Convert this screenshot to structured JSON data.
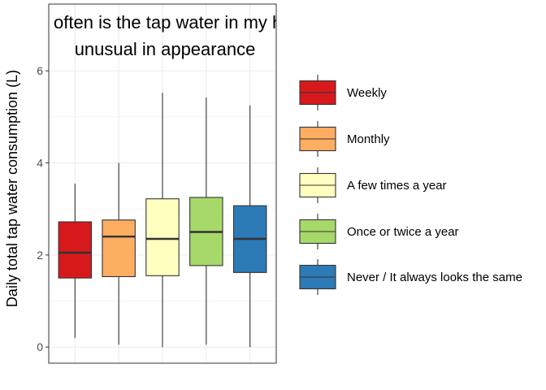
{
  "chart_data": {
    "type": "boxplot",
    "title_lines": [
      "How often is the tap water in my home",
      "unusual in appearance"
    ],
    "ylabel": "Daily total tap water consumption (L)",
    "xlabel": "",
    "ylim": [
      -0.35,
      7.45
    ],
    "yticks": [
      0,
      2,
      4,
      6
    ],
    "grid": true,
    "legend_position": "right",
    "series": [
      {
        "name": "Weekly",
        "color": "#d7191c",
        "whisker_low": 0.2,
        "q1": 1.5,
        "median": 2.05,
        "q3": 2.72,
        "whisker_high": 3.55
      },
      {
        "name": "Monthly",
        "color": "#fdae61",
        "whisker_low": 0.05,
        "q1": 1.53,
        "median": 2.4,
        "q3": 2.76,
        "whisker_high": 4.0
      },
      {
        "name": "A few times a year",
        "color": "#ffffbf",
        "whisker_low": 0.0,
        "q1": 1.55,
        "median": 2.35,
        "q3": 3.22,
        "whisker_high": 5.52
      },
      {
        "name": "Once or twice a year",
        "color": "#a6d96a",
        "whisker_low": 0.05,
        "q1": 1.77,
        "median": 2.5,
        "q3": 3.25,
        "whisker_high": 5.42
      },
      {
        "name": "Never / It always looks the same",
        "color": "#2c7bb6",
        "whisker_low": 0.0,
        "q1": 1.62,
        "median": 2.35,
        "q3": 3.07,
        "whisker_high": 5.25
      }
    ]
  }
}
